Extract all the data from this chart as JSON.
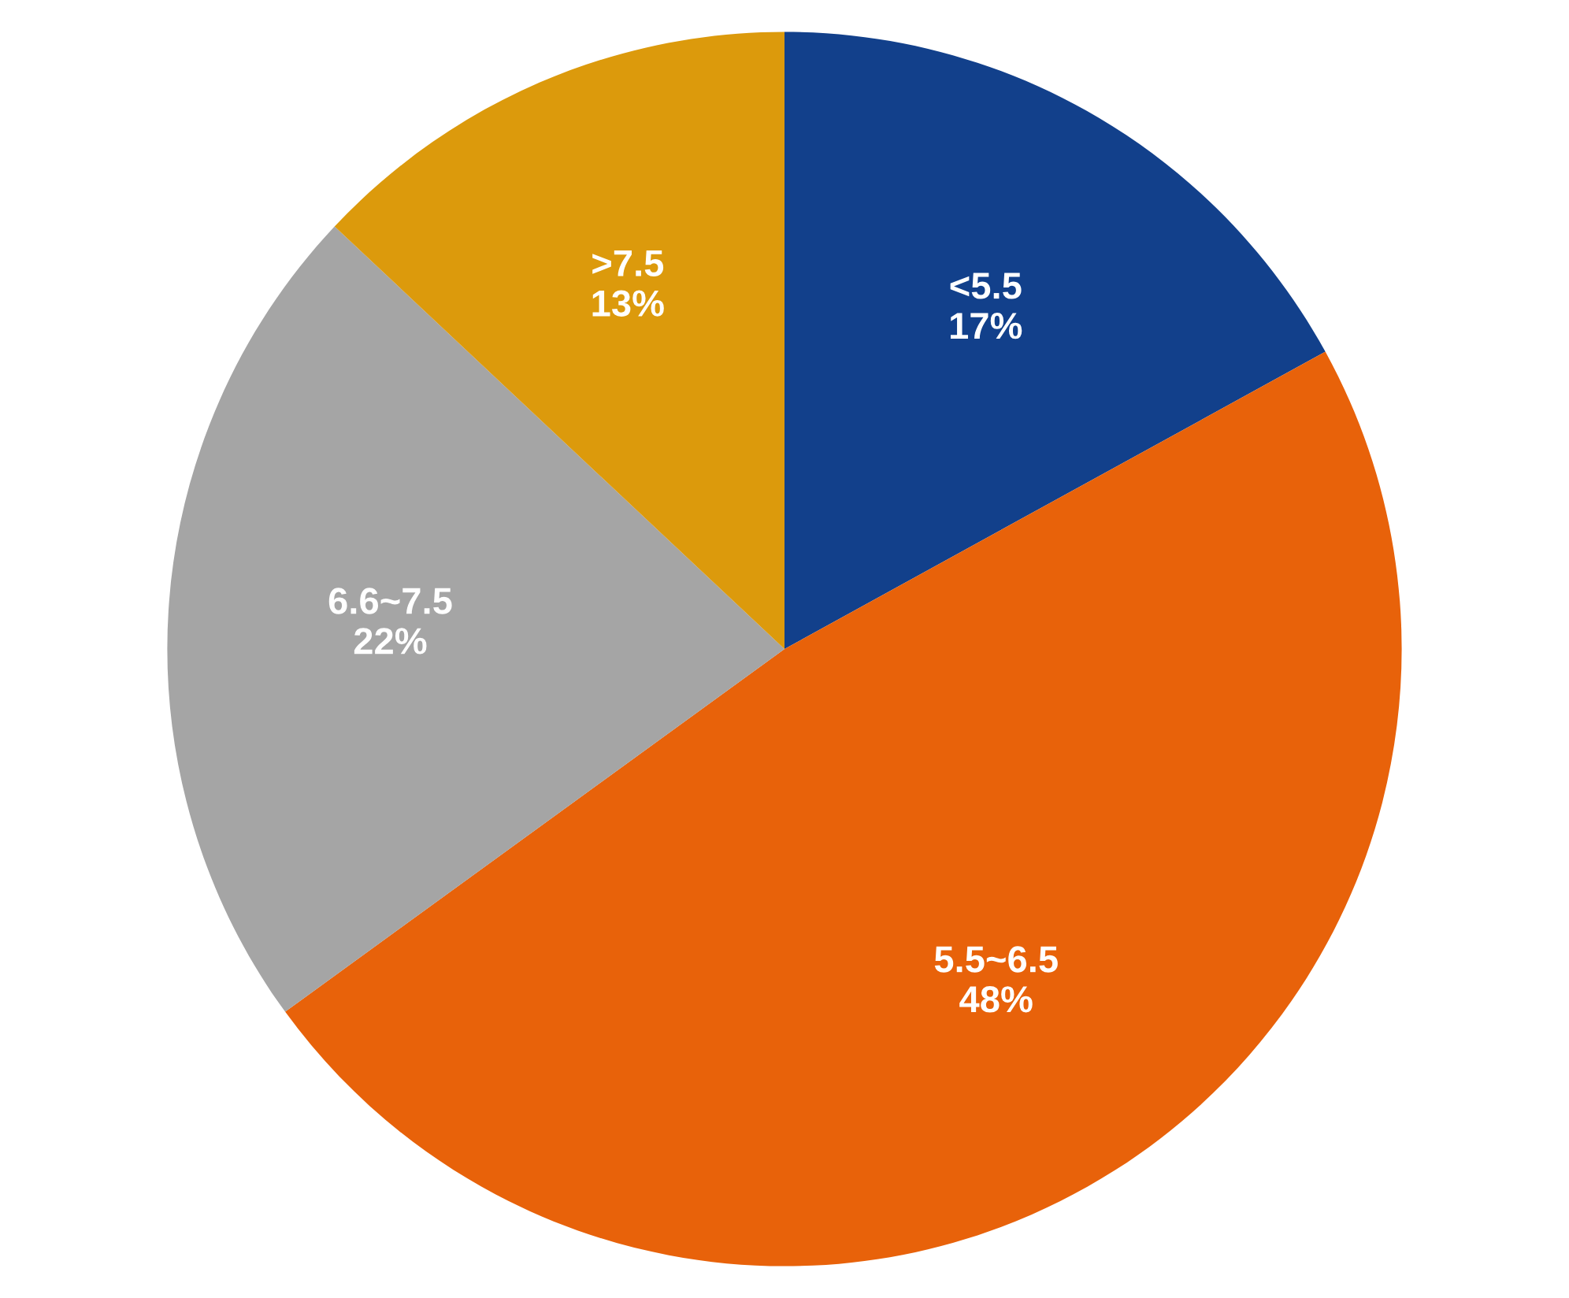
{
  "chart_data": {
    "type": "pie",
    "categories": [
      "<5.5",
      "5.5~6.5",
      "6.6~7.5",
      ">7.5"
    ],
    "values": [
      17,
      48,
      22,
      13
    ],
    "value_labels": [
      "17%",
      "48%",
      "22%",
      "13%"
    ],
    "colors": [
      "#12408b",
      "#e8620a",
      "#a5a5a5",
      "#dc9a0c"
    ]
  }
}
